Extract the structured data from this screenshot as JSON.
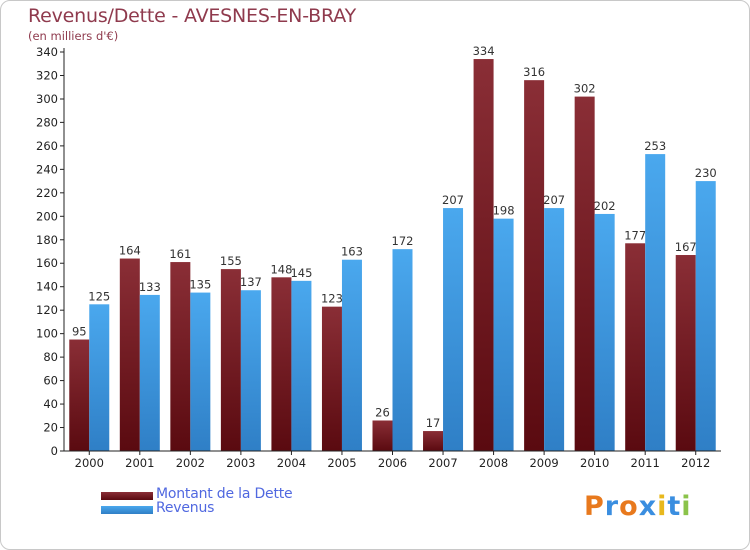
{
  "header": {
    "title": "Revenus/Dette - AVESNES-EN-BRAY",
    "subtitle": "(en milliers d'€)"
  },
  "colors": {
    "dette": "#7a1c24",
    "revenus": "#3c9be0",
    "title": "#8f3a4d",
    "legend_text": "#5068e0"
  },
  "chart_data": {
    "type": "bar",
    "title": "Revenus/Dette - AVESNES-EN-BRAY",
    "subtitle": "(en milliers d'€)",
    "categories": [
      "2000",
      "2001",
      "2002",
      "2003",
      "2004",
      "2005",
      "2006",
      "2007",
      "2008",
      "2009",
      "2010",
      "2011",
      "2012"
    ],
    "series": [
      {
        "name": "Montant de la Dette",
        "values": [
          95,
          164,
          161,
          155,
          148,
          123,
          26,
          17,
          334,
          316,
          302,
          177,
          167
        ]
      },
      {
        "name": "Revenus",
        "values": [
          125,
          133,
          135,
          137,
          145,
          163,
          172,
          207,
          198,
          207,
          202,
          253,
          230
        ]
      }
    ],
    "ylim": [
      0,
      340
    ],
    "yticks": [
      0,
      20,
      40,
      60,
      80,
      100,
      120,
      140,
      160,
      180,
      200,
      220,
      240,
      260,
      280,
      300,
      320,
      340
    ],
    "grid": false,
    "legend_position": "bottom-left"
  },
  "legend": {
    "items": [
      {
        "label": "Montant de la Dette"
      },
      {
        "label": "Revenus"
      }
    ]
  },
  "logo": {
    "letters": [
      "P",
      "r",
      "o",
      "x",
      "i",
      "t",
      "i"
    ],
    "colors": [
      "#e8791d",
      "#3a8ee0",
      "#e8791d",
      "#3a8ee0",
      "#e8b81d",
      "#3a8ee0",
      "#8bc34a"
    ]
  }
}
